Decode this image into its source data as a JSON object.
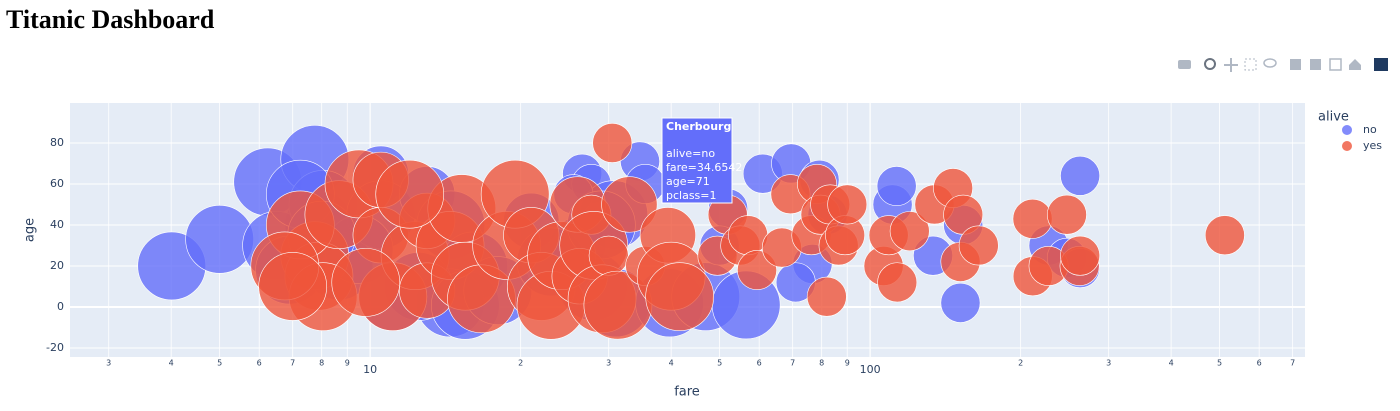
{
  "chart_data": {
    "type": "scatter",
    "title": "Titanic Dashboard",
    "x_label": "fare",
    "y_label": "age",
    "legend_title": "alive",
    "log_x": true,
    "grid": true,
    "legend": "right",
    "xlim": [
      2.51,
      741
    ],
    "ylim": [
      -24.4,
      99.5
    ],
    "xticks": [
      3,
      4,
      5,
      6,
      7,
      8,
      9,
      10,
      {
        "value": 20,
        "label": "2"
      },
      {
        "value": 30,
        "label": "3"
      },
      {
        "value": 40,
        "label": "4"
      },
      {
        "value": 50,
        "label": "5"
      },
      {
        "value": 60,
        "label": "6"
      },
      {
        "value": 70,
        "label": "7"
      },
      {
        "value": 80,
        "label": "8"
      },
      {
        "value": 90,
        "label": "9"
      },
      100,
      {
        "value": 200,
        "label": "2"
      },
      {
        "value": 300,
        "label": "3"
      },
      {
        "value": 400,
        "label": "4"
      },
      {
        "value": 500,
        "label": "5"
      },
      {
        "value": 600,
        "label": "6"
      },
      {
        "value": 700,
        "label": "7"
      }
    ],
    "yticks": [
      -20,
      0,
      20,
      40,
      60,
      80
    ],
    "series": [
      {
        "name": "no",
        "color": "#636efa",
        "x": [
          4.01,
          5.0,
          6.24,
          7.75,
          7.9,
          6.5,
          6.9,
          8.05,
          8.66,
          10.5,
          10.5,
          13,
          14.5,
          16.1,
          21,
          26,
          26.55,
          27.7,
          27.9,
          30.7,
          31,
          34.65,
          39.7,
          46.9,
          52,
          56.5,
          61,
          69.5,
          76.7,
          79.2,
          82.2,
          110.9,
          113,
          133.6,
          151.6,
          153.5,
          227.5,
          247.5,
          263,
          263,
          14.45,
          12.5,
          9.5,
          7.25,
          8.0,
          11.1,
          15.5,
          18,
          23,
          25.5,
          29,
          35.5,
          50,
          71
        ],
        "values": [
          20,
          33,
          61,
          72,
          40,
          30,
          18,
          50,
          20,
          65,
          45,
          55,
          40,
          20,
          42,
          30,
          65,
          60,
          10,
          45,
          2,
          71,
          2,
          5,
          48,
          1,
          65,
          70,
          21,
          62,
          45,
          50,
          59,
          25,
          2,
          40,
          30,
          24,
          64,
          19,
          2,
          10,
          28,
          55,
          35,
          5,
          0.8,
          8,
          22,
          55,
          40,
          60,
          30,
          12
        ],
        "sizes": [
          3,
          3,
          3,
          3,
          3,
          3,
          3,
          3,
          3,
          2,
          3,
          2,
          3,
          3,
          2,
          2,
          1,
          1,
          3,
          3,
          3,
          1,
          3,
          3,
          1,
          3,
          1,
          1,
          1,
          1,
          1,
          1,
          1,
          1,
          1,
          1,
          1,
          1,
          1,
          1,
          3,
          3,
          3,
          3,
          3,
          3,
          3,
          3,
          3,
          1,
          3,
          1,
          1,
          1
        ]
      },
      {
        "name": "yes",
        "color": "#EF553B",
        "x": [
          7.75,
          7.9,
          7.25,
          8.05,
          8.66,
          9.5,
          10.5,
          10.5,
          11.1,
          12.3,
          13,
          13,
          14.45,
          15.25,
          15.5,
          16.7,
          18.75,
          19.5,
          21,
          22,
          23,
          24.15,
          26,
          26.25,
          27.7,
          28,
          29.1,
          30,
          30.5,
          31.3,
          33,
          35.5,
          39.4,
          40,
          41.6,
          49.5,
          51.9,
          55,
          57,
          59.4,
          66.6,
          69.3,
          76.3,
          78.3,
          79.6,
          81.9,
          83.2,
          86.5,
          89.1,
          90,
          106.4,
          108.9,
          113.3,
          120,
          134.5,
          146.5,
          151.6,
          153.5,
          164.9,
          211.3,
          211.5,
          227.5,
          247.5,
          262.4,
          263,
          512.3,
          6.75,
          7.0,
          9.8,
          12
        ],
        "values": [
          25,
          15,
          40,
          5,
          45,
          60,
          62,
          35,
          5,
          25,
          42,
          8,
          30,
          48,
          15,
          4,
          30,
          55,
          35,
          10,
          0.8,
          25,
          50,
          15,
          45,
          30,
          4,
          25,
          80,
          0.9,
          50,
          20,
          35,
          15,
          5,
          25,
          45,
          30,
          35,
          18,
          29,
          55,
          35,
          60,
          45,
          5,
          50,
          30,
          35,
          50,
          20,
          35,
          12,
          37,
          50,
          58,
          22,
          45,
          30,
          43,
          15,
          20,
          45,
          20,
          25,
          35,
          20,
          10,
          12,
          55
        ],
        "sizes": [
          3,
          3,
          3,
          3,
          3,
          3,
          2,
          2,
          3,
          3,
          2,
          2,
          3,
          3,
          3,
          3,
          3,
          3,
          2,
          3,
          3,
          3,
          2,
          2,
          1,
          3,
          3,
          1,
          1,
          3,
          2,
          1,
          2,
          3,
          3,
          1,
          1,
          1,
          1,
          1,
          1,
          1,
          1,
          1,
          1,
          1,
          1,
          1,
          1,
          1,
          1,
          1,
          1,
          1,
          1,
          1,
          1,
          1,
          1,
          1,
          1,
          1,
          1,
          1,
          1,
          1,
          3,
          3,
          3,
          3
        ]
      }
    ],
    "tooltip": {
      "title": "Cherbourg",
      "lines": [
        "alive=no",
        "fare=34.6542",
        "age=71",
        "pclass=1"
      ]
    }
  }
}
